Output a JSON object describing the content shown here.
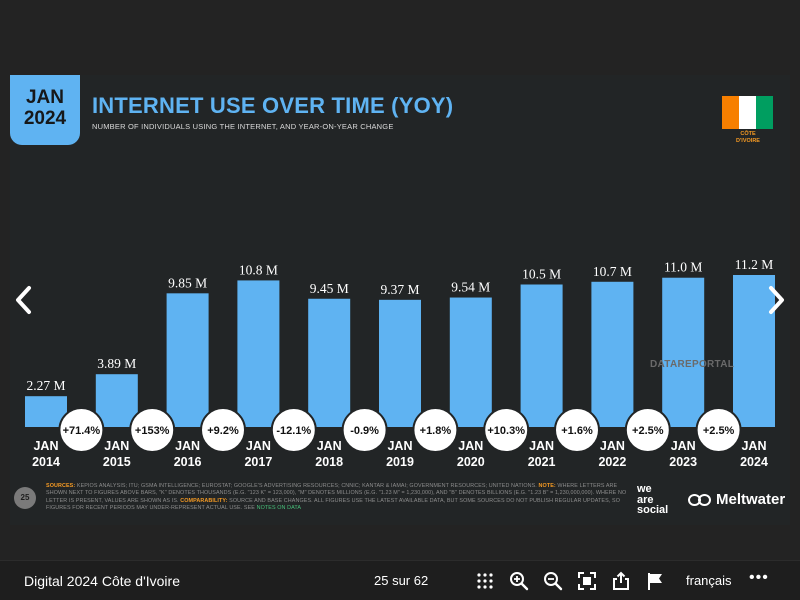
{
  "slide": {
    "date_month": "JAN",
    "date_year": "2024",
    "title": "INTERNET USE OVER TIME (YOY)",
    "subtitle": "NUMBER OF INDIVIDUALS USING THE INTERNET, AND YEAR-ON-YEAR CHANGE",
    "country_label_1": "CÔTE",
    "country_label_2": "D'IVOIRE",
    "flag_colors": [
      "#f77f00",
      "#ffffff",
      "#009e60"
    ],
    "watermark": "DATAREPORTAL",
    "page_number": "25",
    "sources": {
      "label": "SOURCES:",
      "text": "KEPIOS ANALYSIS; ITU; GSMA INTELLIGENCE; EUROSTAT; GOOGLE'S ADVERTISING RESOURCES; CNNIC; KANTAR & IAMAI; GOVERNMENT RESOURCES; UNITED NATIONS.",
      "note_label": "NOTE:",
      "note_text": "WHERE LETTERS ARE SHOWN NEXT TO FIGURES ABOVE BARS, \"K\" DENOTES THOUSANDS (E.G. \"123 K\" = 123,000), \"M\" DENOTES MILLIONS (E.G. \"1.23 M\" = 1,230,000), AND \"B\" DENOTES BILLIONS (E.G. \"1.23 B\" = 1,230,000,000). WHERE NO LETTER IS PRESENT, VALUES ARE SHOWN AS IS.",
      "comp_label": "COMPARABILITY:",
      "comp_text": "SOURCE AND BASE CHANGES. ALL FIGURES USE THE LATEST AVAILABLE DATA, BUT SOME SOURCES DO NOT PUBLISH REGULAR UPDATES, SO FIGURES FOR RECENT PERIODS MAY UNDER-REPRESENT ACTUAL USE. SEE",
      "link_text": "NOTES ON DATA"
    },
    "brand_we_1": "we",
    "brand_we_2": "are",
    "brand_we_3": "social",
    "brand_meltwater": "Meltwater",
    "colors": {
      "bar": "#5fb3f2",
      "background": "#222526",
      "accent": "#f59a23"
    }
  },
  "chart_data": {
    "type": "bar",
    "categories": [
      "JAN 2014",
      "JAN 2015",
      "JAN 2016",
      "JAN 2017",
      "JAN 2018",
      "JAN 2019",
      "JAN 2020",
      "JAN 2021",
      "JAN 2022",
      "JAN 2023",
      "JAN 2024"
    ],
    "values": [
      2.27,
      3.89,
      9.85,
      10.8,
      9.45,
      9.37,
      9.54,
      10.5,
      10.7,
      11.0,
      11.2
    ],
    "value_labels": [
      "2.27 M",
      "3.89 M",
      "9.85 M",
      "10.8 M",
      "9.45 M",
      "9.37 M",
      "9.54 M",
      "10.5 M",
      "10.7 M",
      "11.0 M",
      "11.2 M"
    ],
    "yoy_change": [
      "+71.4%",
      "+153%",
      "+9.2%",
      "-12.1%",
      "-0.9%",
      "+1.8%",
      "+10.3%",
      "+1.6%",
      "+2.5%",
      "+2.5%"
    ],
    "ylim": [
      0,
      11.2
    ]
  },
  "toolbar": {
    "doc_title": "Digital 2024 Côte d'Ivoire",
    "page_counter": "25 sur 62",
    "language": "français",
    "more": "•••",
    "icons": [
      "grid-icon",
      "zoom-in-icon",
      "zoom-out-icon",
      "fullscreen-icon",
      "share-icon",
      "flag-icon"
    ]
  }
}
